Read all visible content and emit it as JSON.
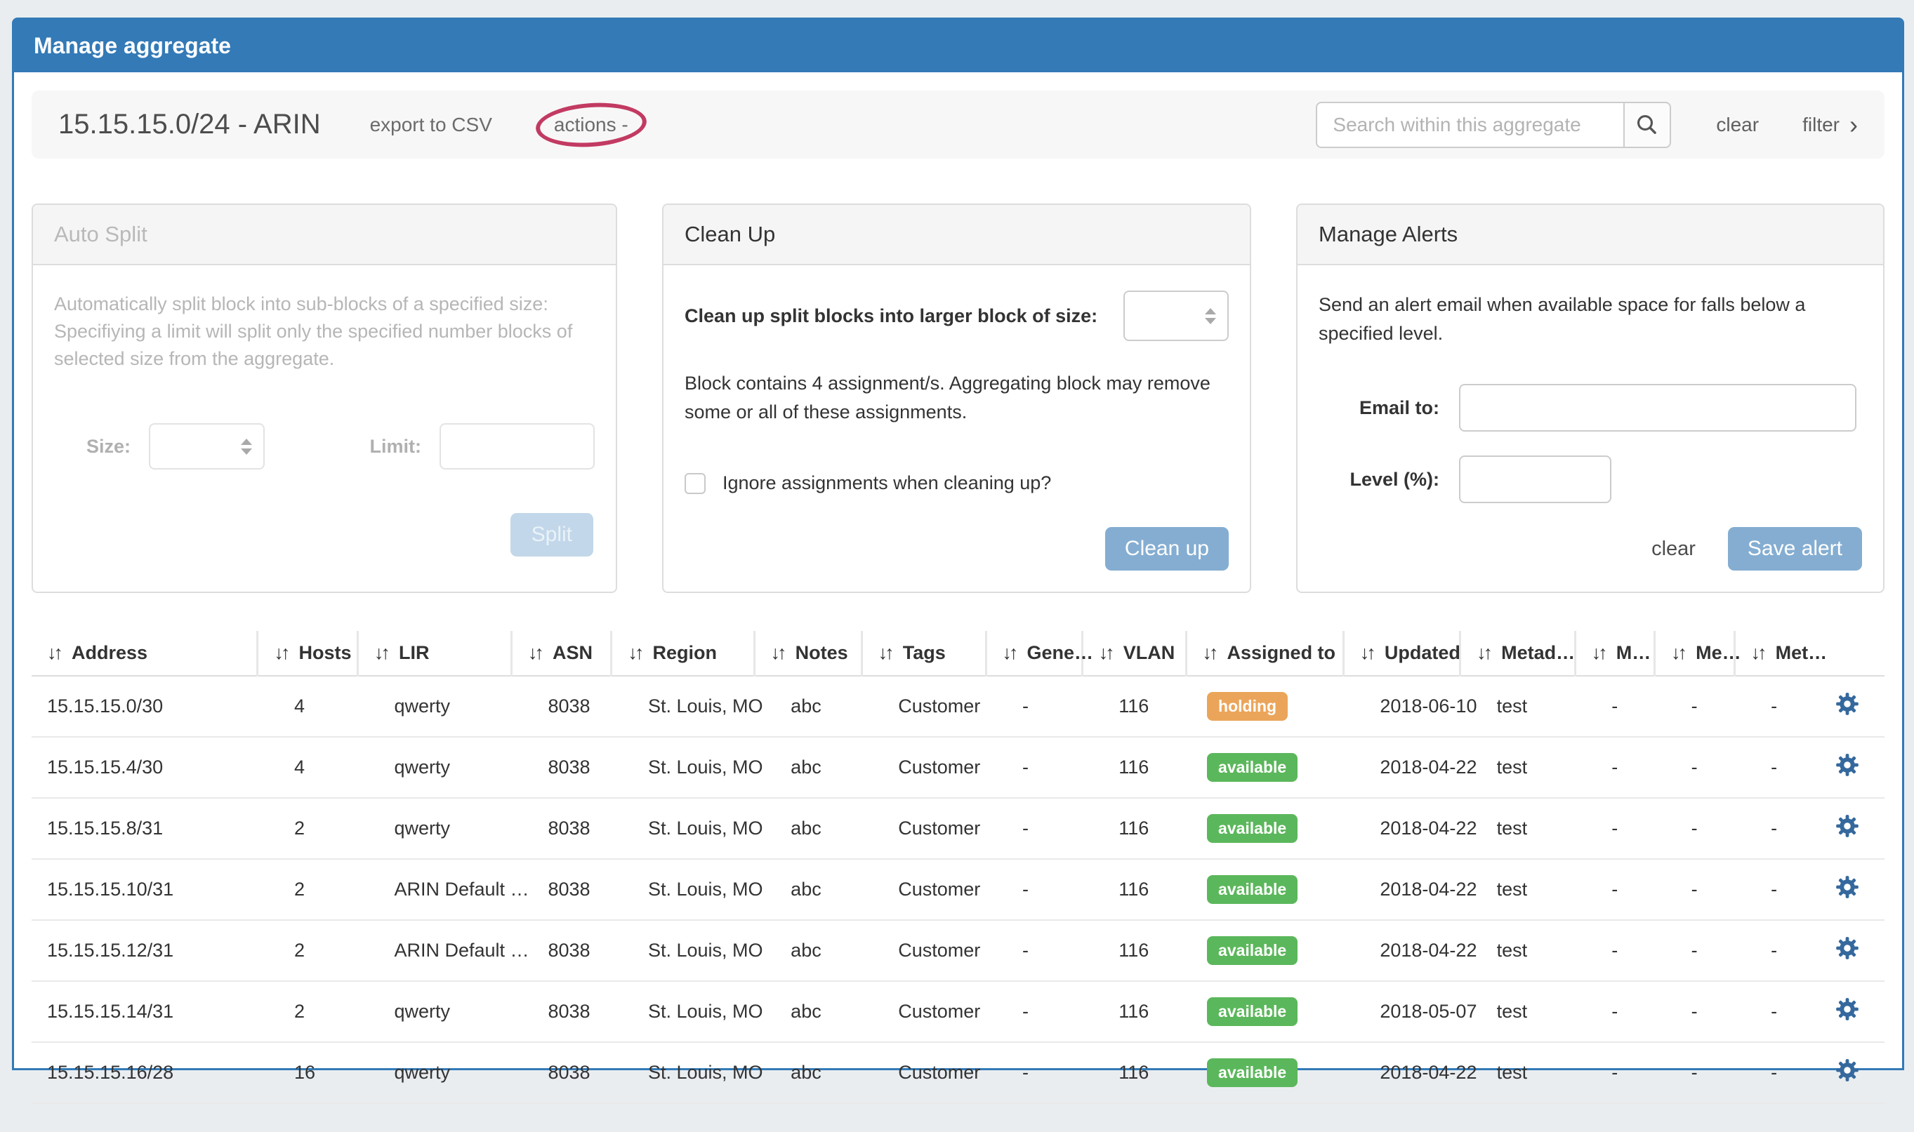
{
  "page": {
    "title": "Manage aggregate"
  },
  "toolbar": {
    "aggregate_title": "15.15.15.0/24 - ARIN",
    "export_label": "export to CSV",
    "actions_label": "actions -",
    "search_placeholder": "Search within this aggregate",
    "clear_label": "clear",
    "filter_label": "filter",
    "filter_chevron": "›"
  },
  "auto_split": {
    "title": "Auto Split",
    "description": "Automatically split block into sub-blocks of a specified size: Specifiying a limit will split only the specified number blocks of selected size from the aggregate.",
    "size_label": "Size:",
    "limit_label": "Limit:",
    "split_button": "Split"
  },
  "clean_up": {
    "title": "Clean Up",
    "select_label": "Clean up split blocks into larger block of size:",
    "warning": "Block contains 4 assignment/s. Aggregating block may remove some or all of these assignments.",
    "checkbox_label": "Ignore assignments when cleaning up?",
    "button": "Clean up"
  },
  "manage_alerts": {
    "title": "Manage Alerts",
    "description": "Send an alert email when available space for falls below a specified level.",
    "email_label": "Email to:",
    "level_label": "Level (%):",
    "clear_label": "clear",
    "save_button": "Save alert"
  },
  "table": {
    "sort_icon": "↓↑",
    "columns": [
      "Address",
      "Hosts",
      "LIR",
      "ASN",
      "Region",
      "Notes",
      "Tags",
      "Gene…",
      "VLAN",
      "Assigned to",
      "Updated",
      "Metad…",
      "M…",
      "Me…",
      "Met…"
    ],
    "status_colors": {
      "holding": "#eba55a",
      "available": "#5bb75b"
    },
    "rows": [
      {
        "address": "15.15.15.0/30",
        "hosts": "4",
        "lir": "qwerty",
        "asn": "8038",
        "region": "St. Louis, MO",
        "notes": "abc",
        "tags": "Customer",
        "generic": "-",
        "vlan": "116",
        "assigned_to": "holding",
        "updated": "2018-06-10",
        "metadata": "test",
        "m1": "-",
        "m2": "-",
        "m3": "-"
      },
      {
        "address": "15.15.15.4/30",
        "hosts": "4",
        "lir": "qwerty",
        "asn": "8038",
        "region": "St. Louis, MO",
        "notes": "abc",
        "tags": "Customer",
        "generic": "-",
        "vlan": "116",
        "assigned_to": "available",
        "updated": "2018-04-22",
        "metadata": "test",
        "m1": "-",
        "m2": "-",
        "m3": "-"
      },
      {
        "address": "15.15.15.8/31",
        "hosts": "2",
        "lir": "qwerty",
        "asn": "8038",
        "region": "St. Louis, MO",
        "notes": "abc",
        "tags": "Customer",
        "generic": "-",
        "vlan": "116",
        "assigned_to": "available",
        "updated": "2018-04-22",
        "metadata": "test",
        "m1": "-",
        "m2": "-",
        "m3": "-"
      },
      {
        "address": "15.15.15.10/31",
        "hosts": "2",
        "lir": "ARIN Default …",
        "asn": "8038",
        "region": "St. Louis, MO",
        "notes": "abc",
        "tags": "Customer",
        "generic": "-",
        "vlan": "116",
        "assigned_to": "available",
        "updated": "2018-04-22",
        "metadata": "test",
        "m1": "-",
        "m2": "-",
        "m3": "-"
      },
      {
        "address": "15.15.15.12/31",
        "hosts": "2",
        "lir": "ARIN Default …",
        "asn": "8038",
        "region": "St. Louis, MO",
        "notes": "abc",
        "tags": "Customer",
        "generic": "-",
        "vlan": "116",
        "assigned_to": "available",
        "updated": "2018-04-22",
        "metadata": "test",
        "m1": "-",
        "m2": "-",
        "m3": "-"
      },
      {
        "address": "15.15.15.14/31",
        "hosts": "2",
        "lir": "qwerty",
        "asn": "8038",
        "region": "St. Louis, MO",
        "notes": "abc",
        "tags": "Customer",
        "generic": "-",
        "vlan": "116",
        "assigned_to": "available",
        "updated": "2018-05-07",
        "metadata": "test",
        "m1": "-",
        "m2": "-",
        "m3": "-"
      },
      {
        "address": "15.15.15.16/28",
        "hosts": "16",
        "lir": "qwerty",
        "asn": "8038",
        "region": "St. Louis, MO",
        "notes": "abc",
        "tags": "Customer",
        "generic": "-",
        "vlan": "116",
        "assigned_to": "available",
        "updated": "2018-04-22",
        "metadata": "test",
        "m1": "-",
        "m2": "-",
        "m3": "-"
      }
    ]
  },
  "colors": {
    "accent_blue": "#337ab7",
    "button_blue": "#84add1",
    "annotation_red": "#c23a62",
    "status_holding": "#eba55a",
    "status_available": "#5bb75b",
    "gear_blue": "#35689d"
  }
}
